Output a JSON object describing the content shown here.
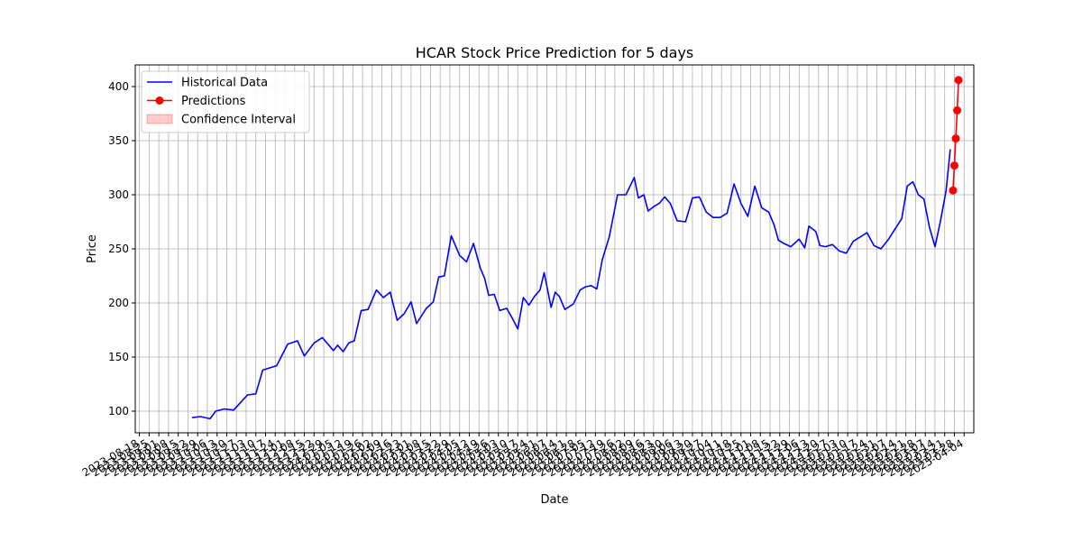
{
  "chart_data": {
    "type": "line",
    "title": "HCAR Stock Price Prediction for 5 days",
    "xlabel": "Date",
    "ylabel": "Price",
    "ylim": [
      80,
      420
    ],
    "xlim": [
      "2023-08-15",
      "2025-04-11"
    ],
    "yticks": [
      100,
      150,
      200,
      250,
      300,
      350,
      400
    ],
    "grid": true,
    "legend_position": "top-left",
    "legend": [
      {
        "label": "Historical Data",
        "color": "#0000ff",
        "kind": "line"
      },
      {
        "label": "Predictions",
        "color": "#ff0000",
        "kind": "line-marker"
      },
      {
        "label": "Confidence Interval",
        "color": "#ff0000",
        "kind": "patch"
      }
    ],
    "xtick_labels": [
      "2023-08-18",
      "2025-04-04"
    ],
    "series": [
      {
        "name": "Historical Data",
        "color": "#0000ff",
        "x": [
          "2023-09-25",
          "2023-10-01",
          "2023-10-08",
          "2023-10-12",
          "2023-10-18",
          "2023-10-25",
          "2023-11-04",
          "2023-11-10",
          "2023-11-15",
          "2023-11-25",
          "2023-12-03",
          "2023-12-10",
          "2023-12-15",
          "2023-12-22",
          "2023-12-28",
          "2024-01-05",
          "2024-01-08",
          "2024-01-12",
          "2024-01-16",
          "2024-01-20",
          "2024-01-25",
          "2024-01-30",
          "2024-02-05",
          "2024-02-10",
          "2024-02-15",
          "2024-02-20",
          "2024-02-25",
          "2024-03-01",
          "2024-03-05",
          "2024-03-12",
          "2024-03-17",
          "2024-03-21",
          "2024-03-25",
          "2024-03-30",
          "2024-04-05",
          "2024-04-10",
          "2024-04-15",
          "2024-04-20",
          "2024-04-23",
          "2024-04-26",
          "2024-04-30",
          "2024-05-04",
          "2024-05-09",
          "2024-05-13",
          "2024-05-17",
          "2024-05-21",
          "2024-05-25",
          "2024-05-29",
          "2024-06-02",
          "2024-06-05",
          "2024-06-10",
          "2024-06-13",
          "2024-06-16",
          "2024-06-20",
          "2024-06-26",
          "2024-07-01",
          "2024-07-05",
          "2024-07-09",
          "2024-07-13",
          "2024-07-17",
          "2024-07-22",
          "2024-07-28",
          "2024-08-03",
          "2024-08-09",
          "2024-08-12",
          "2024-08-16",
          "2024-08-19",
          "2024-08-23",
          "2024-08-27",
          "2024-08-31",
          "2024-09-04",
          "2024-09-09",
          "2024-09-15",
          "2024-09-20",
          "2024-09-25",
          "2024-09-30",
          "2024-10-05",
          "2024-10-10",
          "2024-10-15",
          "2024-10-20",
          "2024-10-25",
          "2024-10-30",
          "2024-11-04",
          "2024-11-09",
          "2024-11-14",
          "2024-11-18",
          "2024-11-21",
          "2024-11-25",
          "2024-11-30",
          "2024-12-06",
          "2024-12-10",
          "2024-12-13",
          "2024-12-18",
          "2024-12-21",
          "2024-12-25",
          "2024-12-30",
          "2025-01-04",
          "2025-01-09",
          "2025-01-14",
          "2025-01-19",
          "2025-01-24",
          "2025-01-29",
          "2025-02-03",
          "2025-02-08",
          "2025-02-13",
          "2025-02-18",
          "2025-02-22",
          "2025-02-26",
          "2025-03-02",
          "2025-03-06",
          "2025-03-10",
          "2025-03-14",
          "2025-03-18",
          "2025-03-22",
          "2025-03-25"
        ],
        "y": [
          94,
          95,
          93,
          100,
          102,
          101,
          115,
          116,
          138,
          142,
          162,
          165,
          151,
          163,
          168,
          156,
          161,
          155,
          163,
          165,
          193,
          194,
          212,
          205,
          210,
          184,
          190,
          201,
          181,
          195,
          201,
          224,
          225,
          262,
          244,
          238,
          255,
          232,
          223,
          207,
          208,
          193,
          195,
          186,
          176,
          205,
          198,
          206,
          212,
          228,
          196,
          210,
          206,
          194,
          199,
          212,
          215,
          216,
          213,
          240,
          261,
          300,
          300,
          316,
          297,
          300,
          285,
          289,
          292,
          298,
          292,
          276,
          275,
          297,
          298,
          284,
          279,
          279,
          283,
          310,
          292,
          280,
          308,
          288,
          284,
          272,
          258,
          255,
          252,
          259,
          251,
          271,
          266,
          253,
          252,
          254,
          248,
          246,
          257,
          261,
          265,
          253,
          250,
          258,
          268,
          278,
          308,
          312,
          300,
          296,
          270,
          252,
          276,
          304,
          342
        ]
      },
      {
        "name": "Predictions",
        "color": "#ff0000",
        "x": [
          "2025-03-27",
          "2025-03-28",
          "2025-03-29",
          "2025-03-30",
          "2025-03-31"
        ],
        "y": [
          304,
          327,
          352,
          378,
          406
        ]
      }
    ]
  }
}
